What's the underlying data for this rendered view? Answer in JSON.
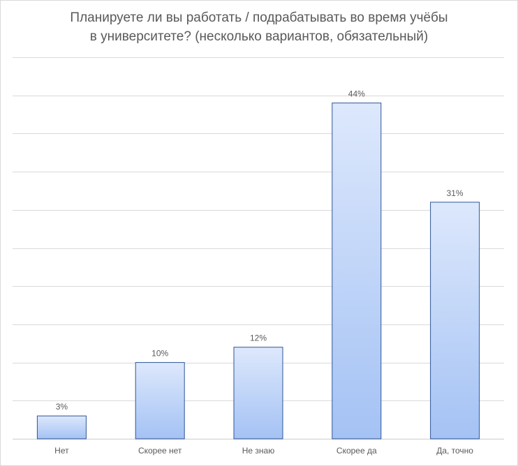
{
  "chart_data": {
    "type": "bar",
    "title_lines": [
      "Планируете ли вы работать / подрабатывать во время учёбы",
      "в университете? (несколько вариантов, обязательный)"
    ],
    "categories": [
      "Нет",
      "Скорее нет",
      "Не знаю",
      "Скорее да",
      "Да, точно"
    ],
    "values": [
      3,
      10,
      12,
      44,
      31
    ],
    "data_labels": [
      "3%",
      "10%",
      "12%",
      "44%",
      "31%"
    ],
    "unit": "%",
    "ylim": [
      0,
      50
    ],
    "grid": true,
    "legend": "none",
    "colors": {
      "bar_top": "#dde8fc",
      "bar_bottom": "#a4c2f4",
      "bar_border": "#2f5597",
      "grid": "#d9d9d9",
      "text": "#595959"
    }
  }
}
